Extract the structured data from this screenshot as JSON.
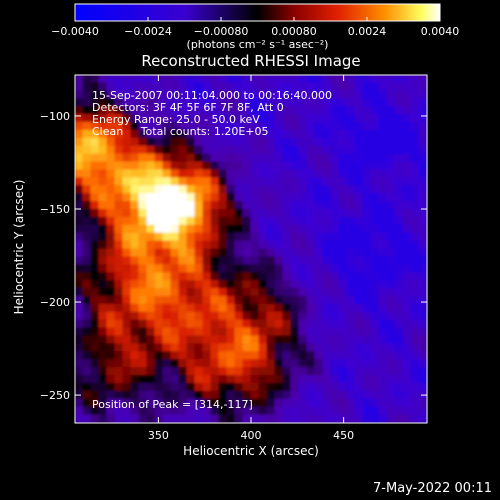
{
  "chart_data": {
    "type": "heatmap",
    "title": "Reconstructed RHESSI Image",
    "xlabel": "Heliocentric X (arcsec)",
    "ylabel": "Heliocentric Y (arcsec)",
    "xlim": [
      305,
      495
    ],
    "ylim": [
      -265,
      -78
    ],
    "xticks": [
      350,
      400,
      450
    ],
    "yticks": [
      -100,
      -150,
      -200,
      -250
    ],
    "xtick_labels": [
      "350",
      "400",
      "450"
    ],
    "ytick_labels": [
      "−100",
      "−150",
      "−200",
      "−250"
    ],
    "colorbar": {
      "range": [
        -0.004,
        0.004
      ],
      "ticks": [
        -0.004,
        -0.0024,
        -0.0008,
        0.0008,
        0.0024,
        0.004
      ],
      "tick_labels": [
        "−0.0040",
        "−0.0024",
        "−0.00080",
        "0.00080",
        "0.0024",
        "0.0040"
      ],
      "units": "(photons cm⁻² s⁻¹ asec⁻²)"
    },
    "annotations": [
      "15-Sep-2007 00:11:04.000 to 00:16:40.000",
      "Detectors: 3F 4F 5F 6F 7F 8F, Att 0",
      "Energy Range: 25.0 - 50.0 keV",
      "Clean     Total counts: 1.20E+05"
    ],
    "peak_label": "Position of Peak = [314,-117]",
    "peak_position": [
      314,
      -117
    ],
    "footer_date": "7-May-2022 00:11",
    "colors": {
      "background": "#000000",
      "negative_end": "#0000ff",
      "zero": "#000000",
      "positive_end": "#ffffff"
    }
  }
}
